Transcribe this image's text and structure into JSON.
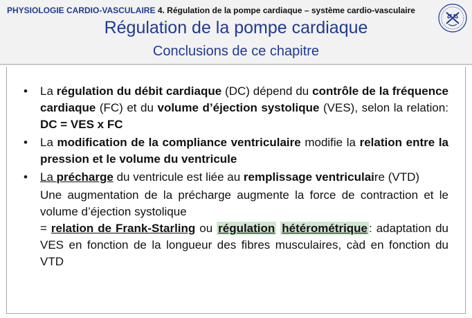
{
  "header": {
    "course": "PHYSIOLOGIE CARDIO-VASCULAIRE",
    "chapter": "4. Régulation de la pompe cardiaque – système cardio-vasculaire",
    "title": "Régulation de la pompe cardiaque",
    "subtitle": "Conclusions de ce chapitre"
  },
  "logo": {
    "icon": "university-seal-icon"
  },
  "bullets": {
    "b1": {
      "t1": "La ",
      "b1": "régulation du débit cardiaque",
      "t2": " (DC) dépend du ",
      "b2": "contrôle de la fréquence cardiaque",
      "t3": " (FC) et du ",
      "b3": "volume d’éjection systolique",
      "t4": " (VES), selon la relation: ",
      "b4": "DC = VES x FC"
    },
    "b2": {
      "t1": "La ",
      "b1": "modification de la compliance ventriculaire",
      "t2": " modifie la ",
      "b2": "relation entre la pression et le volume du ventricule"
    },
    "b3": {
      "t1": "La ",
      "b1": "précharge",
      "t2": " du ventricule est liée au ",
      "b2": "remplissage ventriculai",
      "t3": "re (VTD)"
    }
  },
  "para1": "Une augmentation de la précharge augmente la force de contraction et le volume d’éjection systolique",
  "para2": {
    "t1": "= ",
    "b1": "relation de Frank-Starling",
    "t2": " ou ",
    "b2": "régulation",
    "t3": " ",
    "b3": "hétérométrique",
    "t4": ":",
    "t5": " adaptation du VES en fonction de la longueur des fibres musculaires, càd en fonction du VTD"
  },
  "colors": {
    "accent": "#1f3a93",
    "header_bg": "#f2f2f2",
    "highlight": "#cfe5cf"
  }
}
